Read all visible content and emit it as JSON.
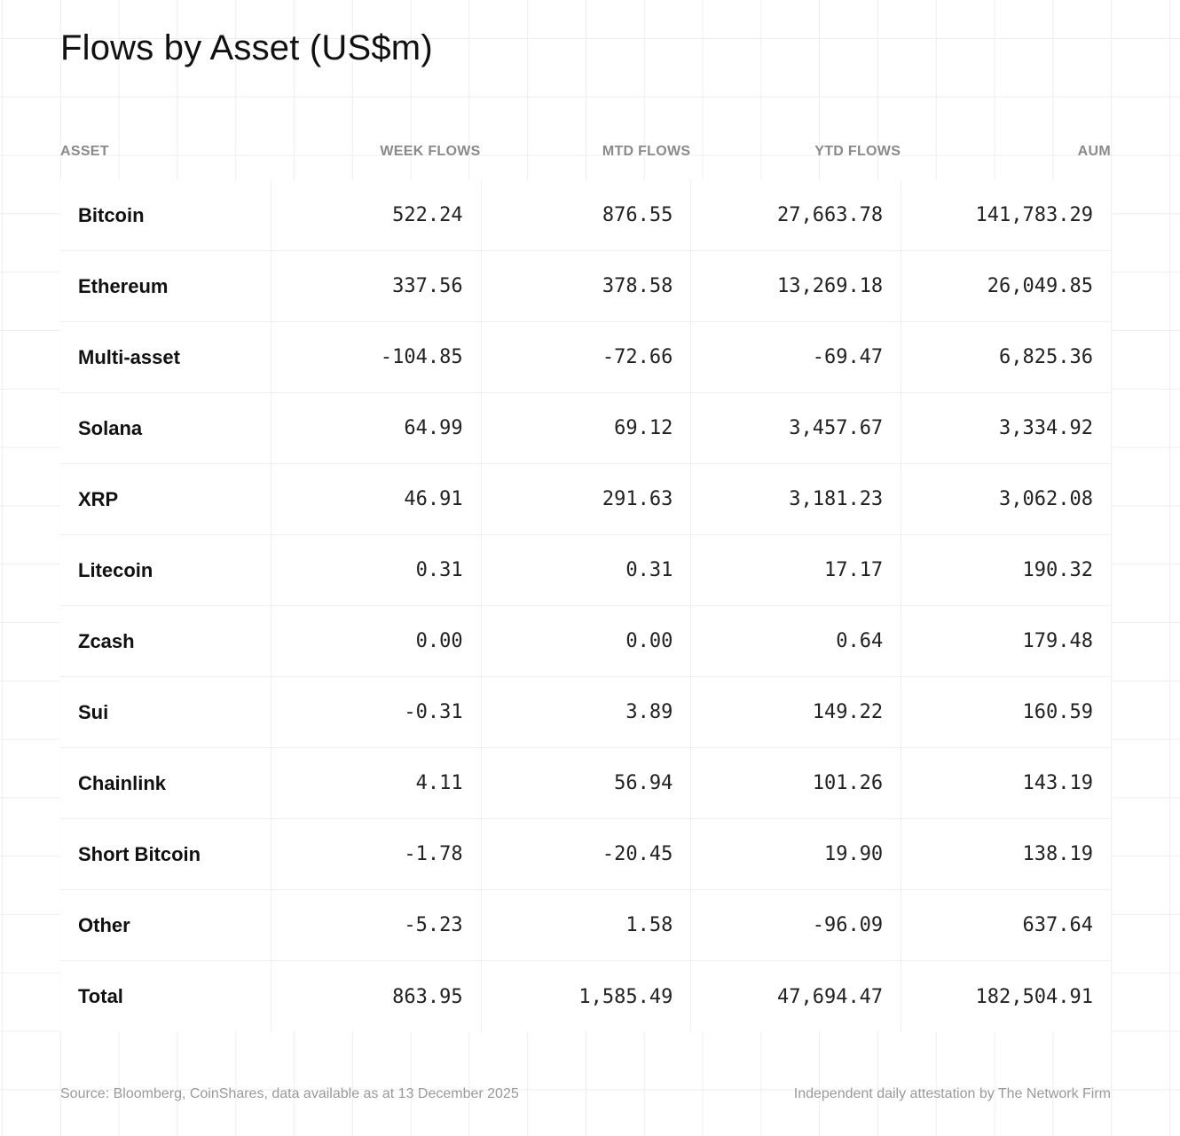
{
  "title": "Flows by Asset (US$m)",
  "footer": {
    "source": "Source: Bloomberg, CoinShares, data available as at 13 December 2025",
    "attestation": "Independent daily attestation by The Network Firm"
  },
  "chart_data": {
    "type": "table",
    "title": "Flows by Asset (US$m)",
    "columns": [
      "ASSET",
      "WEEK FLOWS",
      "MTD FLOWS",
      "YTD FLOWS",
      "AUM"
    ],
    "rows": [
      {
        "asset": "Bitcoin",
        "week": "522.24",
        "mtd": "876.55",
        "ytd": "27,663.78",
        "aum": "141,783.29"
      },
      {
        "asset": "Ethereum",
        "week": "337.56",
        "mtd": "378.58",
        "ytd": "13,269.18",
        "aum": "26,049.85"
      },
      {
        "asset": "Multi-asset",
        "week": "-104.85",
        "mtd": "-72.66",
        "ytd": "-69.47",
        "aum": "6,825.36"
      },
      {
        "asset": "Solana",
        "week": "64.99",
        "mtd": "69.12",
        "ytd": "3,457.67",
        "aum": "3,334.92"
      },
      {
        "asset": "XRP",
        "week": "46.91",
        "mtd": "291.63",
        "ytd": "3,181.23",
        "aum": "3,062.08"
      },
      {
        "asset": "Litecoin",
        "week": "0.31",
        "mtd": "0.31",
        "ytd": "17.17",
        "aum": "190.32"
      },
      {
        "asset": "Zcash",
        "week": "0.00",
        "mtd": "0.00",
        "ytd": "0.64",
        "aum": "179.48"
      },
      {
        "asset": "Sui",
        "week": "-0.31",
        "mtd": "3.89",
        "ytd": "149.22",
        "aum": "160.59"
      },
      {
        "asset": "Chainlink",
        "week": "4.11",
        "mtd": "56.94",
        "ytd": "101.26",
        "aum": "143.19"
      },
      {
        "asset": "Short Bitcoin",
        "week": "-1.78",
        "mtd": "-20.45",
        "ytd": "19.90",
        "aum": "138.19"
      },
      {
        "asset": "Other",
        "week": "-5.23",
        "mtd": "1.58",
        "ytd": "-96.09",
        "aum": "637.64"
      },
      {
        "asset": "Total",
        "week": "863.95",
        "mtd": "1,585.49",
        "ytd": "47,694.47",
        "aum": "182,504.91"
      }
    ]
  }
}
